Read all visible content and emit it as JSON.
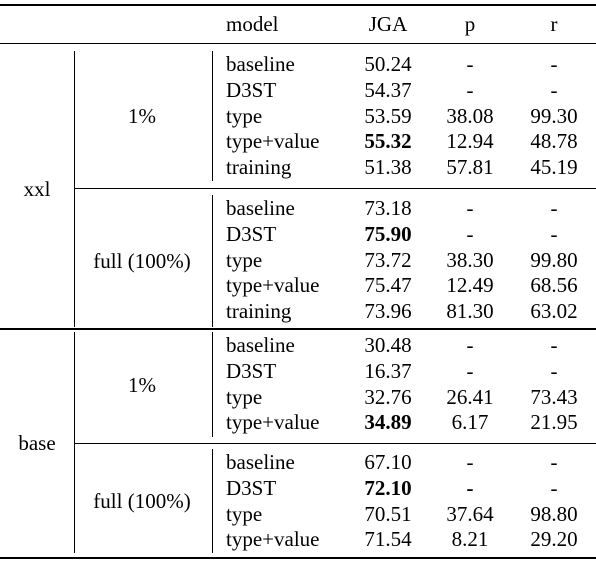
{
  "header": {
    "model": "model",
    "jga": "JGA",
    "p": "p",
    "r": "r"
  },
  "groups": [
    {
      "size": "xxl",
      "blocks": [
        {
          "data": "1%",
          "rows": [
            {
              "model": "baseline",
              "jga": "50.24",
              "p": "-",
              "r": "-"
            },
            {
              "model": "D3ST",
              "jga": "54.37",
              "p": "-",
              "r": "-"
            },
            {
              "model": "type",
              "jga": "53.59",
              "p": "38.08",
              "r": "99.30"
            },
            {
              "model": "type+value",
              "jga": "55.32",
              "p": "12.94",
              "r": "48.78",
              "bold_jga": true
            },
            {
              "model": "training",
              "jga": "51.38",
              "p": "57.81",
              "r": "45.19"
            }
          ]
        },
        {
          "data": "full (100%)",
          "rows": [
            {
              "model": "baseline",
              "jga": "73.18",
              "p": "-",
              "r": "-"
            },
            {
              "model": "D3ST",
              "jga": "75.90",
              "p": "-",
              "r": "-",
              "bold_jga": true
            },
            {
              "model": "type",
              "jga": "73.72",
              "p": "38.30",
              "r": "99.80"
            },
            {
              "model": "type+value",
              "jga": "75.47",
              "p": "12.49",
              "r": "68.56"
            },
            {
              "model": "training",
              "jga": "73.96",
              "p": "81.30",
              "r": "63.02"
            }
          ]
        }
      ]
    },
    {
      "size": "base",
      "blocks": [
        {
          "data": "1%",
          "rows": [
            {
              "model": "baseline",
              "jga": "30.48",
              "p": "-",
              "r": "-"
            },
            {
              "model": "D3ST",
              "jga": "16.37",
              "p": "-",
              "r": "-"
            },
            {
              "model": "type",
              "jga": "32.76",
              "p": "26.41",
              "r": "73.43"
            },
            {
              "model": "type+value",
              "jga": "34.89",
              "p": "6.17",
              "r": "21.95",
              "bold_jga": true
            }
          ]
        },
        {
          "data": "full (100%)",
          "rows": [
            {
              "model": "baseline",
              "jga": "67.10",
              "p": "-",
              "r": "-"
            },
            {
              "model": "D3ST",
              "jga": "72.10",
              "p": "-",
              "r": "-",
              "bold_jga": true,
              "bold_p": true
            },
            {
              "model": "type",
              "jga": "70.51",
              "p": "37.64",
              "r": "98.80"
            },
            {
              "model": "type+value",
              "jga": "71.54",
              "p": "8.21",
              "r": "29.20"
            }
          ]
        }
      ]
    }
  ]
}
